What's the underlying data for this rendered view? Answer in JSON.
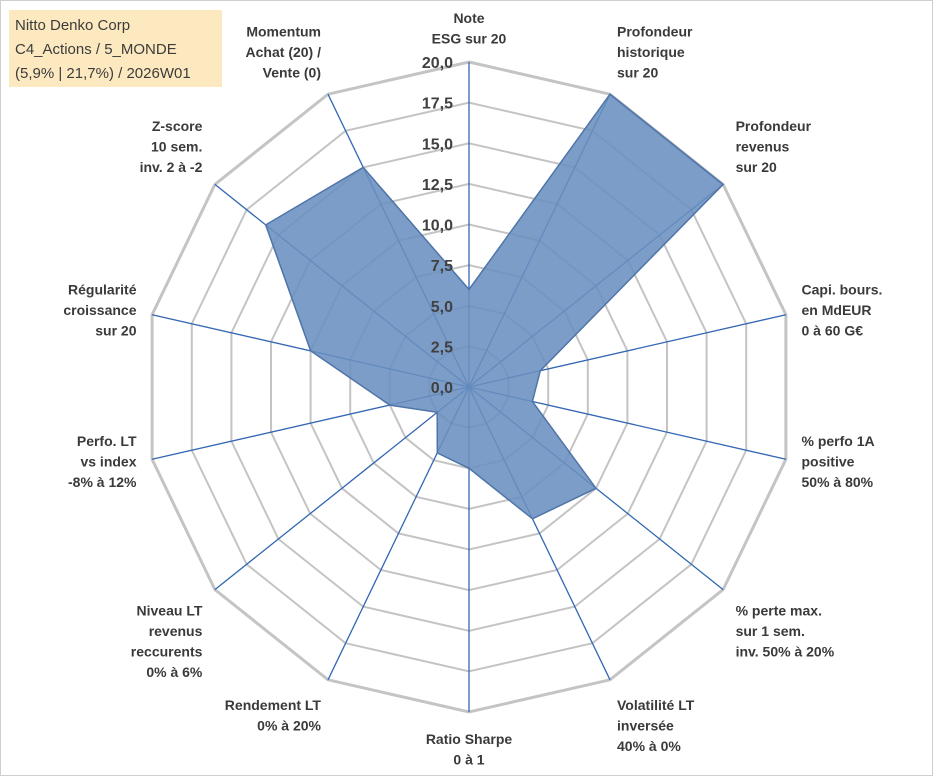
{
  "title_lines": [
    "Nitto Denko Corp",
    "C4_Actions / 5_MONDE",
    "(5,9% | 21,7%) / 2026W01"
  ],
  "colors": {
    "fill": "#6a8fbf",
    "stroke": "#4f74a8",
    "spoke": "#3366b3",
    "grid": "#c4c4c4",
    "title_bg": "#fde9c0"
  },
  "chart_data": {
    "type": "radar",
    "rmin": 0,
    "rmax": 20,
    "grid": true,
    "tick_labels": [
      "0,0",
      "2,5",
      "5,0",
      "7,5",
      "10,0",
      "12,5",
      "15,0",
      "17,5",
      "20,0"
    ],
    "axes": [
      [
        "Note",
        "ESG sur 20"
      ],
      [
        "Profondeur",
        "historique",
        "sur 20"
      ],
      [
        "Profondeur",
        "revenus",
        "sur 20"
      ],
      [
        "Capi. bours.",
        "en MdEUR",
        "0 à 60 G€"
      ],
      [
        "% perfo 1A",
        "positive",
        "50% à 80%"
      ],
      [
        "% perte max.",
        "sur 1 sem.",
        "inv. 50% à 20%"
      ],
      [
        "Volatilité LT",
        "inversée",
        "40% à 0%"
      ],
      [
        "Ratio Sharpe",
        "0 à 1"
      ],
      [
        "Rendement LT",
        "0% à 20%"
      ],
      [
        "Niveau LT",
        "revenus",
        "reccurents",
        "0% à 6%"
      ],
      [
        "Perfo. LT",
        "vs index",
        "-8% à 12%"
      ],
      [
        "Régularité",
        "croissance",
        "sur 20"
      ],
      [
        "Z-score",
        "10 sem.",
        "inv. 2 à -2"
      ],
      [
        "Momentum",
        "Achat (20) /",
        "Vente (0)"
      ]
    ],
    "values": [
      6,
      20,
      20,
      4.5,
      4,
      10,
      9,
      5,
      4.5,
      2.5,
      5,
      10,
      16,
      15
    ]
  }
}
